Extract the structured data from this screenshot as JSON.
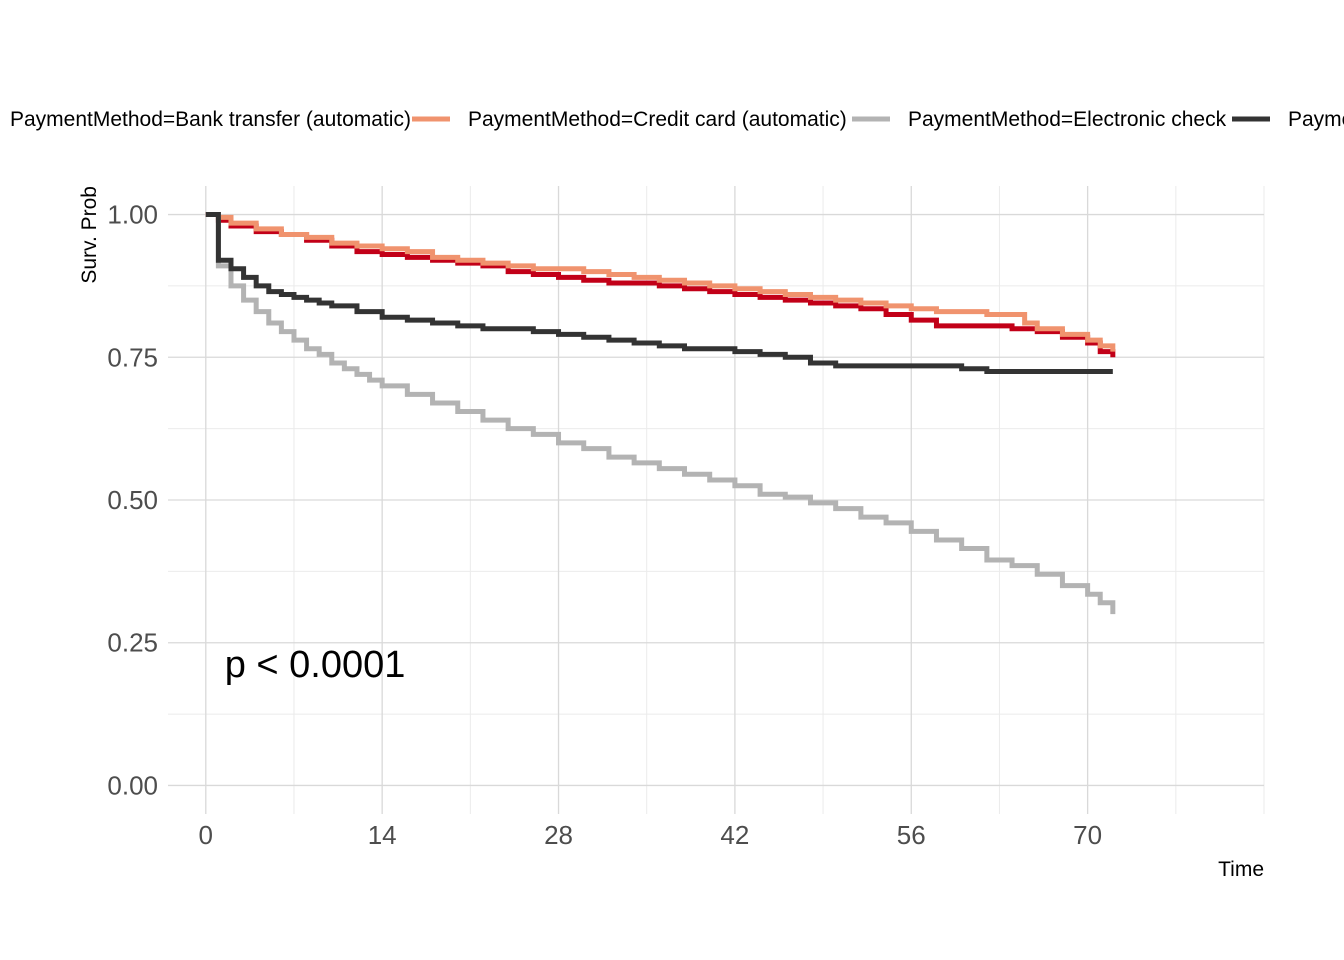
{
  "chart_data": {
    "type": "line",
    "xlabel": "Time",
    "ylabel": "Surv. Prob",
    "xlim": [
      -3,
      84
    ],
    "ylim": [
      -0.05,
      1.05
    ],
    "x_ticks": [
      0,
      14,
      28,
      42,
      56,
      70
    ],
    "x_tick_labels": [
      "0",
      "14",
      "28",
      "42",
      "56",
      "70"
    ],
    "x_minor_ticks": [
      7,
      21,
      35,
      49,
      63,
      77,
      84
    ],
    "y_ticks": [
      0,
      0.25,
      0.5,
      0.75,
      1.0
    ],
    "y_tick_labels": [
      "0.00",
      "0.25",
      "0.50",
      "0.75",
      "1.00"
    ],
    "y_minor_ticks": [
      0.125,
      0.375,
      0.625,
      0.875
    ],
    "grid": true,
    "legend_position": "top",
    "annotation": {
      "text": "p < 0.0001",
      "x": 1.5,
      "y": 0.19
    },
    "series": [
      {
        "name": "PaymentMethod=Bank transfer (automatic)",
        "color": "#c20018",
        "x": [
          0,
          1,
          2,
          4,
          6,
          8,
          10,
          12,
          14,
          16,
          18,
          20,
          22,
          24,
          26,
          28,
          30,
          32,
          34,
          36,
          38,
          40,
          42,
          44,
          46,
          48,
          50,
          52,
          54,
          56,
          58,
          60,
          62,
          64,
          66,
          68,
          70,
          71,
          72
        ],
        "y": [
          1.0,
          0.99,
          0.98,
          0.97,
          0.965,
          0.955,
          0.945,
          0.935,
          0.93,
          0.925,
          0.92,
          0.915,
          0.91,
          0.9,
          0.895,
          0.89,
          0.885,
          0.88,
          0.88,
          0.875,
          0.87,
          0.865,
          0.86,
          0.855,
          0.85,
          0.845,
          0.84,
          0.835,
          0.825,
          0.815,
          0.805,
          0.805,
          0.805,
          0.8,
          0.795,
          0.785,
          0.775,
          0.76,
          0.75
        ]
      },
      {
        "name": "PaymentMethod=Credit card (automatic)",
        "color": "#f0936e",
        "x": [
          0,
          1,
          2,
          4,
          6,
          8,
          10,
          12,
          14,
          16,
          18,
          20,
          22,
          24,
          26,
          28,
          30,
          32,
          34,
          36,
          38,
          40,
          42,
          44,
          46,
          48,
          50,
          52,
          54,
          56,
          58,
          60,
          62,
          64,
          65,
          66,
          68,
          70,
          71,
          72
        ],
        "y": [
          1.0,
          0.995,
          0.985,
          0.975,
          0.965,
          0.96,
          0.95,
          0.945,
          0.94,
          0.935,
          0.925,
          0.92,
          0.915,
          0.91,
          0.905,
          0.905,
          0.9,
          0.895,
          0.89,
          0.885,
          0.88,
          0.875,
          0.87,
          0.865,
          0.86,
          0.855,
          0.85,
          0.845,
          0.84,
          0.835,
          0.83,
          0.83,
          0.825,
          0.825,
          0.81,
          0.8,
          0.79,
          0.78,
          0.77,
          0.76
        ]
      },
      {
        "name": "PaymentMethod=Electronic check",
        "color": "#b3b3b3",
        "x": [
          0,
          1,
          2,
          3,
          4,
          5,
          6,
          7,
          8,
          9,
          10,
          11,
          12,
          13,
          14,
          16,
          18,
          20,
          22,
          24,
          26,
          28,
          30,
          32,
          34,
          36,
          38,
          40,
          42,
          44,
          46,
          48,
          50,
          52,
          54,
          56,
          58,
          60,
          62,
          64,
          66,
          68,
          70,
          71,
          72
        ],
        "y": [
          1.0,
          0.91,
          0.875,
          0.85,
          0.83,
          0.81,
          0.795,
          0.78,
          0.765,
          0.755,
          0.74,
          0.73,
          0.72,
          0.71,
          0.7,
          0.685,
          0.67,
          0.655,
          0.64,
          0.625,
          0.615,
          0.6,
          0.59,
          0.575,
          0.565,
          0.555,
          0.545,
          0.535,
          0.525,
          0.51,
          0.505,
          0.495,
          0.485,
          0.47,
          0.46,
          0.445,
          0.43,
          0.415,
          0.395,
          0.385,
          0.37,
          0.35,
          0.335,
          0.32,
          0.3
        ]
      },
      {
        "name": "PaymentMethod=Mailed check",
        "color": "#333333",
        "x": [
          0,
          1,
          2,
          3,
          4,
          5,
          6,
          7,
          8,
          9,
          10,
          12,
          14,
          16,
          18,
          20,
          22,
          24,
          26,
          28,
          30,
          32,
          34,
          36,
          38,
          40,
          42,
          44,
          46,
          48,
          50,
          52,
          54,
          56,
          58,
          60,
          62,
          64,
          66,
          68,
          70,
          72
        ],
        "y": [
          1.0,
          0.92,
          0.905,
          0.89,
          0.875,
          0.865,
          0.86,
          0.855,
          0.85,
          0.845,
          0.84,
          0.83,
          0.82,
          0.815,
          0.81,
          0.805,
          0.8,
          0.8,
          0.795,
          0.79,
          0.785,
          0.78,
          0.775,
          0.77,
          0.765,
          0.765,
          0.76,
          0.755,
          0.75,
          0.74,
          0.735,
          0.735,
          0.735,
          0.735,
          0.735,
          0.73,
          0.725,
          0.725,
          0.725,
          0.725,
          0.725,
          0.725
        ]
      }
    ]
  }
}
